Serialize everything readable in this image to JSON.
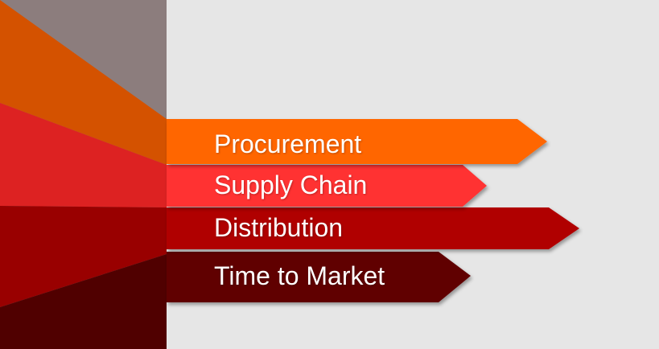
{
  "background": "#e6e6e6",
  "panel_color": "#8c7d7d",
  "items": [
    {
      "label": "Procurement",
      "color": "#ff6600",
      "fan_color": "#d45200"
    },
    {
      "label": "Supply Chain",
      "color": "#ff3333",
      "fan_color": "#dd2222"
    },
    {
      "label": "Distribution",
      "color": "#b00000",
      "fan_color": "#990000"
    },
    {
      "label": "Time to Market",
      "color": "#600000",
      "fan_color": "#500000"
    }
  ]
}
